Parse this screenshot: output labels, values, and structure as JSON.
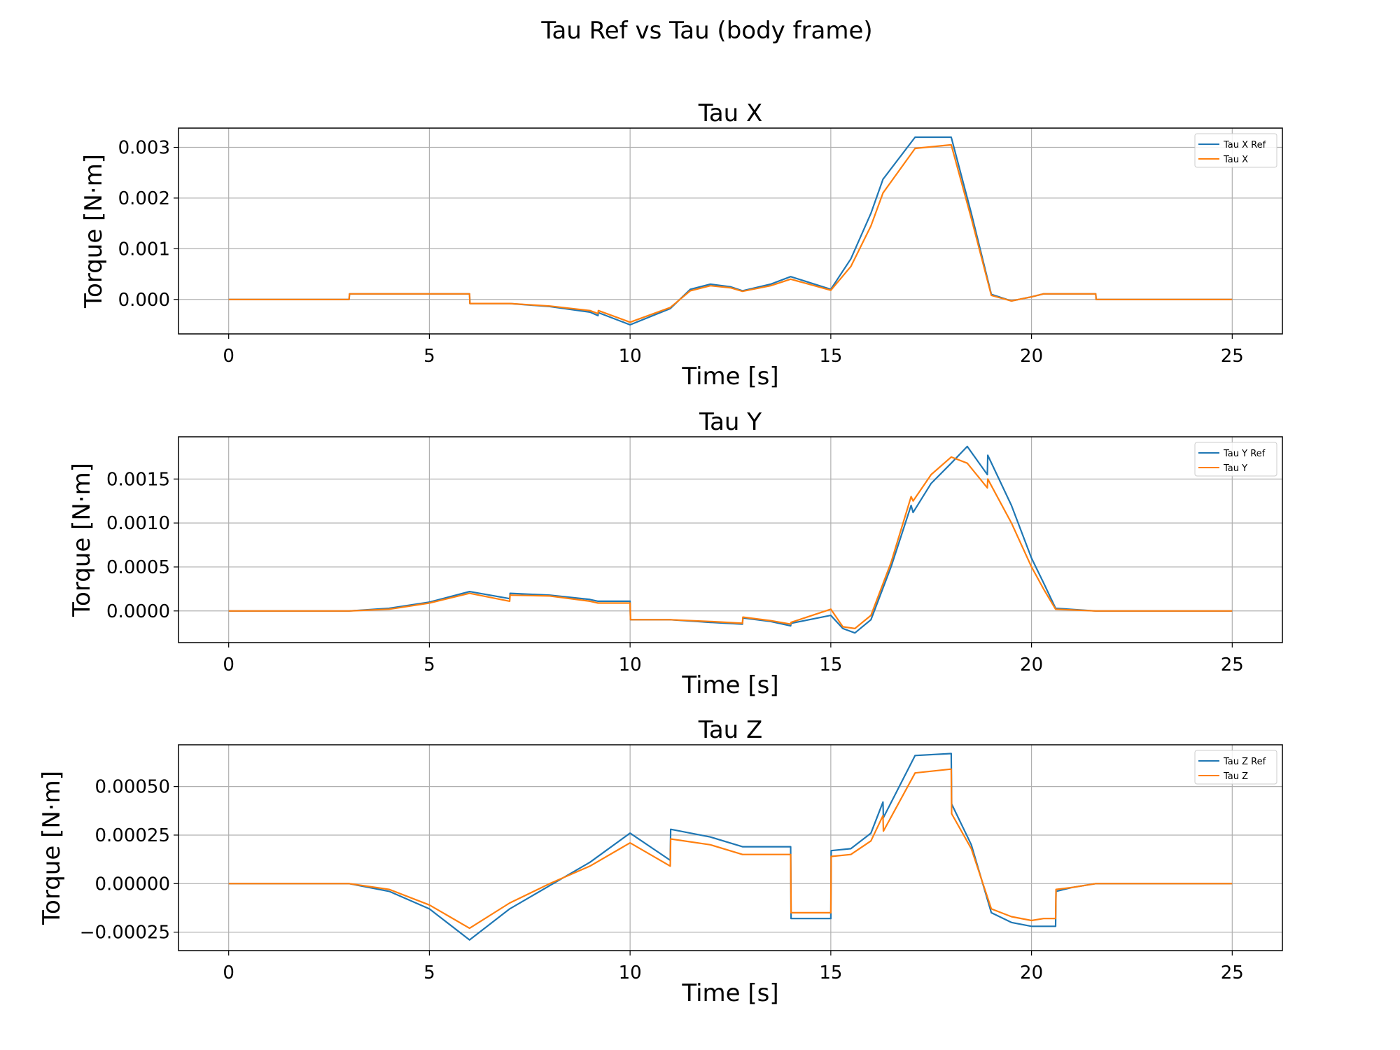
{
  "chart_data": {
    "title": "Tau Ref vs Tau (body frame)",
    "type": "line",
    "charts": [
      {
        "type": "line",
        "title": "Tau X",
        "xlabel": "Time [s]",
        "ylabel": "Torque [N·m]",
        "xlim": [
          -1.25,
          26.25
        ],
        "ylim": [
          -0.00068,
          0.00338
        ],
        "xticks": [
          0,
          5,
          10,
          15,
          20,
          25
        ],
        "xtick_labels": [
          "0",
          "5",
          "10",
          "15",
          "20",
          "25"
        ],
        "yticks": [
          0.0,
          0.001,
          0.002,
          0.003
        ],
        "ytick_labels": [
          "0.000",
          "0.001",
          "0.002",
          "0.003"
        ],
        "grid": true,
        "legend": "top-right",
        "series": [
          {
            "name": "Tau X Ref",
            "color": "#1f77b4",
            "x": [
              0,
              3,
              3.01,
              6,
              6.01,
              7,
              8,
              9,
              9.2,
              9.21,
              10,
              11,
              11.5,
              12,
              12.5,
              12.8,
              13.5,
              14,
              15,
              15.5,
              16,
              16.3,
              17.1,
              18.0,
              18.5,
              19.0,
              19.5,
              20.0,
              20.3,
              21.6,
              21.61,
              25
            ],
            "y": [
              0,
              0,
              0.00011,
              0.00011,
              -8e-05,
              -8e-05,
              -0.00014,
              -0.00025,
              -0.00032,
              -0.00026,
              -0.0005,
              -0.00018,
              0.0002,
              0.0003,
              0.00025,
              0.00017,
              0.0003,
              0.00045,
              0.0002,
              0.0008,
              0.0017,
              0.00237,
              0.0032,
              0.0032,
              0.0017,
              0.0001,
              -3e-05,
              5e-05,
              0.00011,
              0.00011,
              0,
              0
            ]
          },
          {
            "name": "Tau X",
            "color": "#ff7f0e",
            "x": [
              0,
              3,
              3.01,
              6,
              6.01,
              7,
              8,
              9,
              9.2,
              9.21,
              10,
              11,
              11.5,
              12,
              12.5,
              12.8,
              13.5,
              14,
              15,
              15.5,
              16,
              16.3,
              17.1,
              18.0,
              18.5,
              19.0,
              19.5,
              20.0,
              20.3,
              21.6,
              21.61,
              25
            ],
            "y": [
              0,
              0,
              0.00011,
              0.00011,
              -8e-05,
              -8e-05,
              -0.00013,
              -0.00022,
              -0.00028,
              -0.00022,
              -0.00045,
              -0.00016,
              0.00017,
              0.00027,
              0.00023,
              0.00016,
              0.00027,
              0.0004,
              0.00018,
              0.00065,
              0.00145,
              0.0021,
              0.00298,
              0.00305,
              0.0016,
              8e-05,
              -3e-05,
              5e-05,
              0.00011,
              0.00011,
              0,
              0
            ]
          }
        ]
      },
      {
        "type": "line",
        "title": "Tau Y",
        "xlabel": "Time [s]",
        "ylabel": "Torque [N·m]",
        "xlim": [
          -1.25,
          26.25
        ],
        "ylim": [
          -0.00036,
          0.00198
        ],
        "xticks": [
          0,
          5,
          10,
          15,
          20,
          25
        ],
        "xtick_labels": [
          "0",
          "5",
          "10",
          "15",
          "20",
          "25"
        ],
        "yticks": [
          0.0,
          0.0005,
          0.001,
          0.0015
        ],
        "ytick_labels": [
          "0.0000",
          "0.0005",
          "0.0010",
          "0.0015"
        ],
        "grid": true,
        "legend": "top-right",
        "series": [
          {
            "name": "Tau Y Ref",
            "color": "#1f77b4",
            "x": [
              0,
              3,
              4,
              5,
              6,
              7,
              7.01,
              8,
              9,
              9.2,
              10,
              10.01,
              11,
              12,
              12.8,
              12.81,
              13.5,
              14,
              14.01,
              15,
              15.3,
              15.6,
              16,
              16.5,
              17.0,
              17.05,
              17.5,
              18.0,
              18.4,
              18.9,
              18.91,
              19.5,
              20.0,
              20.3,
              20.6,
              21.6,
              25
            ],
            "y": [
              0,
              0,
              3e-05,
              0.0001,
              0.00022,
              0.00014,
              0.0002,
              0.00018,
              0.00013,
              0.00011,
              0.00011,
              -0.0001,
              -0.0001,
              -0.00013,
              -0.00015,
              -8e-05,
              -0.00012,
              -0.00017,
              -0.00014,
              -5e-05,
              -0.0002,
              -0.00025,
              -0.0001,
              0.0005,
              0.0012,
              0.00112,
              0.00145,
              0.00168,
              0.00187,
              0.00155,
              0.00177,
              0.0012,
              0.0006,
              0.00032,
              3e-05,
              0,
              0
            ]
          },
          {
            "name": "Tau Y",
            "color": "#ff7f0e",
            "x": [
              0,
              3,
              4,
              5,
              6,
              7,
              7.01,
              8,
              9,
              9.2,
              10,
              10.01,
              11,
              12,
              12.8,
              12.81,
              13.5,
              14,
              14.01,
              15,
              15.3,
              15.6,
              16,
              16.5,
              17.0,
              17.05,
              17.5,
              18.0,
              18.4,
              18.9,
              18.91,
              19.5,
              20.0,
              20.3,
              20.6,
              21.6,
              25
            ],
            "y": [
              0,
              0,
              2e-05,
              9e-05,
              0.0002,
              0.00011,
              0.00018,
              0.00017,
              0.00011,
              9e-05,
              9e-05,
              -0.0001,
              -0.0001,
              -0.00012,
              -0.00014,
              -7e-05,
              -0.00011,
              -0.00015,
              -0.00013,
              2e-05,
              -0.00018,
              -0.0002,
              -5e-05,
              0.00055,
              0.0013,
              0.00125,
              0.00155,
              0.00175,
              0.00168,
              0.0014,
              0.0015,
              0.001,
              0.0005,
              0.00025,
              2e-05,
              0,
              0
            ]
          }
        ]
      },
      {
        "type": "line",
        "title": "Tau Z",
        "xlabel": "Time [s]",
        "ylabel": "Torque [N·m]",
        "xlim": [
          -1.25,
          26.25
        ],
        "ylim": [
          -0.000345,
          0.000715
        ],
        "xticks": [
          0,
          5,
          10,
          15,
          20,
          25
        ],
        "xtick_labels": [
          "0",
          "5",
          "10",
          "15",
          "20",
          "25"
        ],
        "yticks": [
          -0.00025,
          0.0,
          0.00025,
          0.0005
        ],
        "ytick_labels": [
          "−0.00025",
          "0.00000",
          "0.00025",
          "0.00050"
        ],
        "grid": true,
        "legend": "top-right",
        "series": [
          {
            "name": "Tau Z Ref",
            "color": "#1f77b4",
            "x": [
              0,
              3,
              4,
              5,
              6,
              7,
              8,
              9,
              10,
              11,
              11.01,
              12,
              12.8,
              12.81,
              14,
              14.01,
              15,
              15.01,
              15.5,
              16,
              16.3,
              16.31,
              17.1,
              18.0,
              18.01,
              18.5,
              19.0,
              19.5,
              20.0,
              20.3,
              20.6,
              20.61,
              21.0,
              21.6,
              25
            ],
            "y": [
              0,
              0,
              -4e-05,
              -0.00013,
              -0.00029,
              -0.00013,
              -1e-05,
              0.00011,
              0.00026,
              0.00012,
              0.00028,
              0.00024,
              0.00019,
              0.00019,
              0.00019,
              -0.00018,
              -0.00018,
              0.00017,
              0.00018,
              0.00026,
              0.00042,
              0.00034,
              0.00066,
              0.00067,
              0.00041,
              0.0002,
              -0.00015,
              -0.0002,
              -0.00022,
              -0.00022,
              -0.00022,
              -4e-05,
              -2e-05,
              0,
              0
            ]
          },
          {
            "name": "Tau Z",
            "color": "#ff7f0e",
            "x": [
              0,
              3,
              4,
              5,
              6,
              7,
              8,
              9,
              10,
              11,
              11.01,
              12,
              12.8,
              12.81,
              14,
              14.01,
              15,
              15.01,
              15.5,
              16,
              16.3,
              16.31,
              17.1,
              18.0,
              18.01,
              18.5,
              19.0,
              19.5,
              20.0,
              20.3,
              20.6,
              20.61,
              21.0,
              21.6,
              25
            ],
            "y": [
              0,
              0,
              -3e-05,
              -0.00011,
              -0.00023,
              -0.0001,
              0.0,
              9e-05,
              0.00021,
              9e-05,
              0.00023,
              0.0002,
              0.00015,
              0.00015,
              0.00015,
              -0.00015,
              -0.00015,
              0.00014,
              0.00015,
              0.00022,
              0.00035,
              0.00027,
              0.00057,
              0.00059,
              0.00036,
              0.00018,
              -0.00013,
              -0.00017,
              -0.00019,
              -0.00018,
              -0.00018,
              -3e-05,
              -2e-05,
              0,
              0
            ]
          }
        ]
      }
    ]
  }
}
